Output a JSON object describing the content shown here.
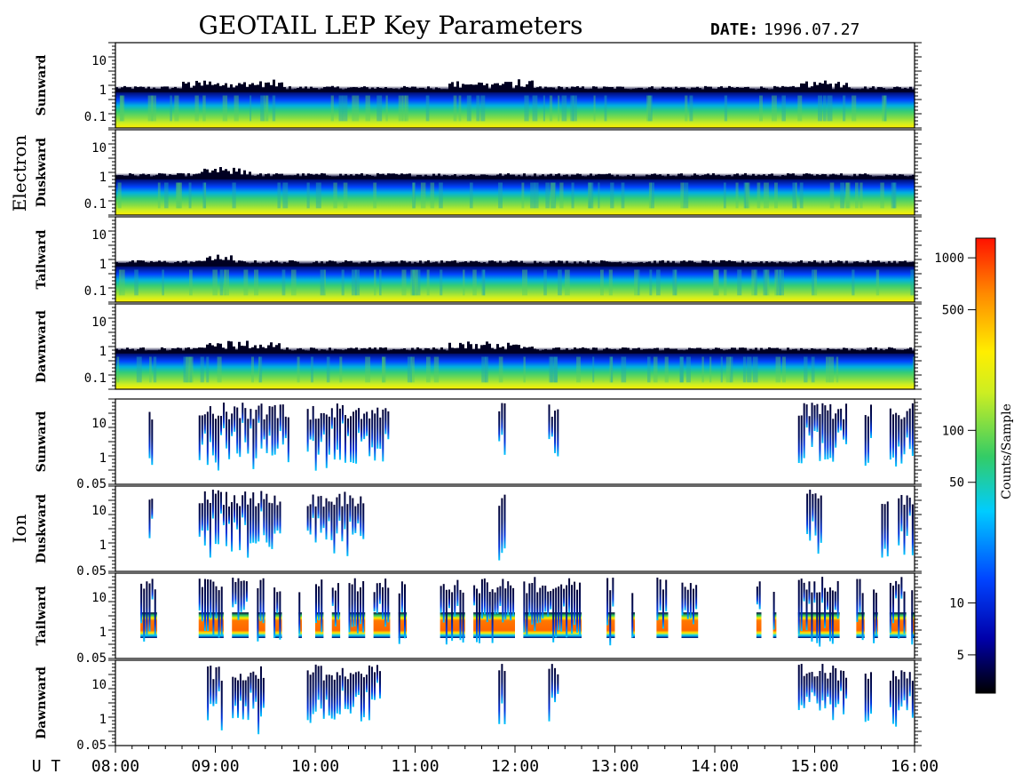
{
  "header": {
    "title": "GEOTAIL LEP Key Parameters",
    "date_label": "DATE:",
    "date_value": "1996.07.27"
  },
  "groups": [
    {
      "name": "Electron"
    },
    {
      "name": "Ion"
    }
  ],
  "x_axis": {
    "prefix": "U T",
    "ticks": [
      "08:00",
      "09:00",
      "10:00",
      "11:00",
      "12:00",
      "13:00",
      "14:00",
      "15:00",
      "16:00"
    ]
  },
  "colorbar": {
    "label": "Counts/Sample",
    "ticks": [
      "1000",
      "500",
      "100",
      "50",
      "10",
      "5"
    ],
    "tick_values": [
      1000,
      500,
      100,
      50,
      10,
      5
    ],
    "range": [
      3,
      1300
    ],
    "scale": "log"
  },
  "colors": {
    "background": "#ffffff",
    "low": "#000033",
    "blue": "#0033ff",
    "cyan": "#00ccff",
    "green": "#33cc66",
    "yellow": "#ffee00",
    "orange": "#ff7700",
    "red": "#ff1100"
  },
  "chart_data": [
    {
      "type": "heatmap",
      "group": "Electron",
      "panel": "Sunward",
      "x_range": [
        "08:00",
        "16:00"
      ],
      "y_scale": "log",
      "y_ticks": [
        "10",
        "1",
        "0.1"
      ],
      "band_top_y": 0.7,
      "noisy_intervals": [
        [
          "08:40",
          "09:40"
        ],
        [
          "11:20",
          "12:10"
        ],
        [
          "14:50",
          "15:20"
        ]
      ]
    },
    {
      "type": "heatmap",
      "group": "Electron",
      "panel": "Duskward",
      "x_range": [
        "08:00",
        "16:00"
      ],
      "y_scale": "log",
      "y_ticks": [
        "10",
        "1",
        "0.1"
      ],
      "band_top_y": 0.6,
      "noisy_intervals": [
        [
          "08:50",
          "09:20"
        ]
      ]
    },
    {
      "type": "heatmap",
      "group": "Electron",
      "panel": "Tailward",
      "x_range": [
        "08:00",
        "16:00"
      ],
      "y_scale": "log",
      "y_ticks": [
        "10",
        "1",
        "0.1"
      ],
      "band_top_y": 0.7,
      "noisy_intervals": [
        [
          "08:50",
          "09:10"
        ]
      ]
    },
    {
      "type": "heatmap",
      "group": "Electron",
      "panel": "Dawnward",
      "x_range": [
        "08:00",
        "16:00"
      ],
      "y_scale": "log",
      "y_ticks": [
        "10",
        "1",
        "0.1"
      ],
      "band_top_y": 0.6,
      "noisy_intervals": [
        [
          "08:50",
          "09:40"
        ],
        [
          "11:20",
          "12:10"
        ]
      ]
    },
    {
      "type": "heatmap",
      "group": "Ion",
      "panel": "Sunward",
      "x_range": [
        "08:00",
        "16:00"
      ],
      "y_scale": "log",
      "y_ticks": [
        "10",
        "1",
        "0.05"
      ],
      "events": [
        [
          "08:20",
          "08:23"
        ],
        [
          "08:50",
          "09:45"
        ],
        [
          "09:55",
          "10:45"
        ],
        [
          "11:50",
          "11:55"
        ],
        [
          "12:20",
          "12:27"
        ],
        [
          "14:50",
          "15:20"
        ],
        [
          "15:30",
          "15:35"
        ],
        [
          "15:45",
          "16:00"
        ]
      ]
    },
    {
      "type": "heatmap",
      "group": "Ion",
      "panel": "Duskward",
      "x_range": [
        "08:00",
        "16:00"
      ],
      "y_scale": "log",
      "y_ticks": [
        "10",
        "1",
        "0.05"
      ],
      "events": [
        [
          "08:20",
          "08:23"
        ],
        [
          "08:50",
          "09:40"
        ],
        [
          "09:55",
          "10:30"
        ],
        [
          "11:50",
          "11:55"
        ],
        [
          "14:55",
          "15:05"
        ],
        [
          "15:40",
          "15:45"
        ],
        [
          "15:50",
          "16:00"
        ]
      ]
    },
    {
      "type": "heatmap",
      "group": "Ion",
      "panel": "Tailward",
      "x_range": [
        "08:00",
        "16:00"
      ],
      "y_scale": "log",
      "y_ticks": [
        "10",
        "1",
        "0.05"
      ],
      "events": [
        [
          "08:15",
          "08:25"
        ],
        [
          "08:50",
          "09:05"
        ],
        [
          "09:10",
          "09:20"
        ],
        [
          "09:25",
          "09:30"
        ],
        [
          "09:35",
          "09:40"
        ],
        [
          "09:50",
          "09:52"
        ],
        [
          "10:00",
          "10:05"
        ],
        [
          "10:10",
          "10:15"
        ],
        [
          "10:20",
          "10:30"
        ],
        [
          "10:35",
          "10:45"
        ],
        [
          "10:50",
          "10:55"
        ],
        [
          "11:15",
          "11:30"
        ],
        [
          "11:35",
          "12:00"
        ],
        [
          "12:05",
          "12:40"
        ],
        [
          "12:55",
          "13:00"
        ],
        [
          "13:10",
          "13:12"
        ],
        [
          "13:25",
          "13:32"
        ],
        [
          "13:40",
          "13:50"
        ],
        [
          "14:25",
          "14:28"
        ],
        [
          "14:35",
          "14:37"
        ],
        [
          "14:50",
          "15:15"
        ],
        [
          "15:25",
          "15:30"
        ],
        [
          "15:35",
          "15:38"
        ],
        [
          "15:45",
          "15:55"
        ],
        [
          "15:58",
          "16:00"
        ]
      ]
    },
    {
      "type": "heatmap",
      "group": "Ion",
      "panel": "Dawnward",
      "x_range": [
        "08:00",
        "16:00"
      ],
      "y_scale": "log",
      "y_ticks": [
        "10",
        "1",
        "0.05"
      ],
      "events": [
        [
          "08:55",
          "09:05"
        ],
        [
          "09:10",
          "09:30"
        ],
        [
          "09:55",
          "10:40"
        ],
        [
          "11:50",
          "11:55"
        ],
        [
          "12:20",
          "12:27"
        ],
        [
          "14:50",
          "15:20"
        ],
        [
          "15:30",
          "15:35"
        ],
        [
          "15:45",
          "16:00"
        ]
      ]
    }
  ]
}
